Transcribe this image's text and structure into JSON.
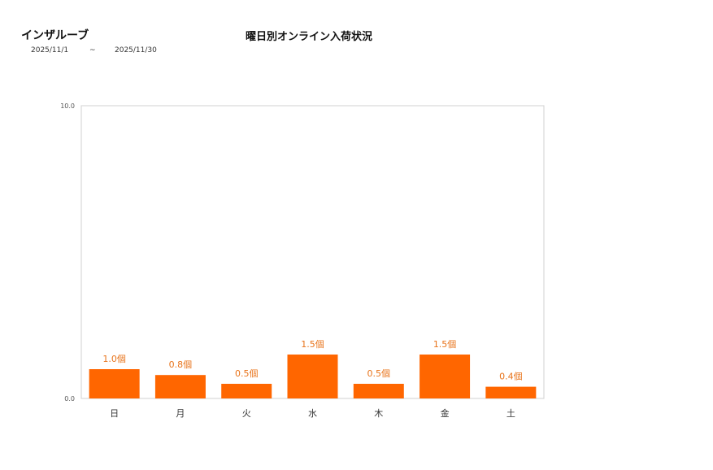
{
  "header": {
    "group_name": "インザルーブ",
    "date_from": "2025/11/1",
    "date_separator": "~",
    "date_to": "2025/11/30"
  },
  "chart_data": {
    "type": "bar",
    "title": "曜日別オンライン入荷状況",
    "categories": [
      "日",
      "月",
      "火",
      "水",
      "木",
      "金",
      "土"
    ],
    "values": [
      1.0,
      0.8,
      0.5,
      1.5,
      0.5,
      1.5,
      0.4
    ],
    "data_labels": [
      "1.0個",
      "0.8個",
      "0.5個",
      "1.5個",
      "0.5個",
      "1.5個",
      "0.4個"
    ],
    "ylim": [
      0,
      10
    ],
    "y_ticks": [
      "0.0",
      "10.0"
    ],
    "bar_color": "#ff6600",
    "label_color": "#e8731a",
    "grid": false,
    "legend": "none"
  }
}
